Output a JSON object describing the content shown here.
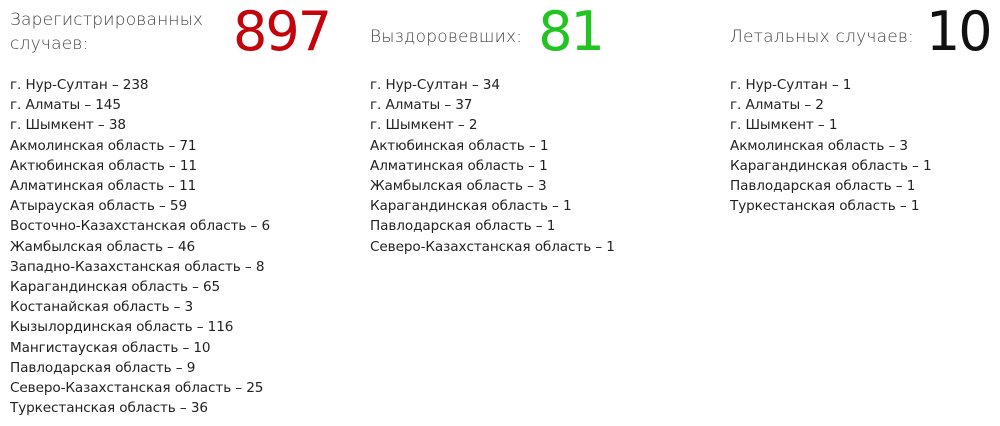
{
  "colors": {
    "registered": "#c4040c",
    "recovered": "#22c422",
    "deaths": "#111111"
  },
  "columns": [
    {
      "title": "Зарегистрированных случаев:",
      "number": "897",
      "items": [
        "г. Нур-Султан – 238",
        "г. Алматы – 145",
        "г. Шымкент – 38",
        "Акмолинская область – 71",
        "Актюбинская область – 11",
        "Алматинская область – 11",
        "Атырауская область – 59",
        "Восточно-Казахстанская область – 6",
        "Жамбылская область – 46",
        "Западно-Казахстанская область – 8",
        "Карагандинская область – 65",
        "Костанайская область – 3",
        "Кызылординская область – 116",
        "Мангистауская область – 10",
        "Павлодарская область – 9",
        "Северо-Казахстанская область – 25",
        "Туркестанская область – 36"
      ]
    },
    {
      "title": "Выздоровевших:",
      "number": "81",
      "items": [
        "г. Нур-Султан – 34",
        "г. Алматы – 37",
        "г. Шымкент – 2",
        "Актюбинская область – 1",
        "Алматинская область – 1",
        "Жамбылская область – 3",
        "Карагандинская область – 1",
        "Павлодарская область – 1",
        "Северо-Казахстанская область – 1"
      ]
    },
    {
      "title": "Летальных случаев:",
      "number": "10",
      "items": [
        "г. Нур-Султан – 1",
        "г. Алматы – 2",
        "г. Шымкент – 1",
        "Акмолинская область – 3",
        "Карагандинская область – 1",
        "Павлодарская область – 1",
        "Туркестанская область – 1"
      ]
    }
  ]
}
